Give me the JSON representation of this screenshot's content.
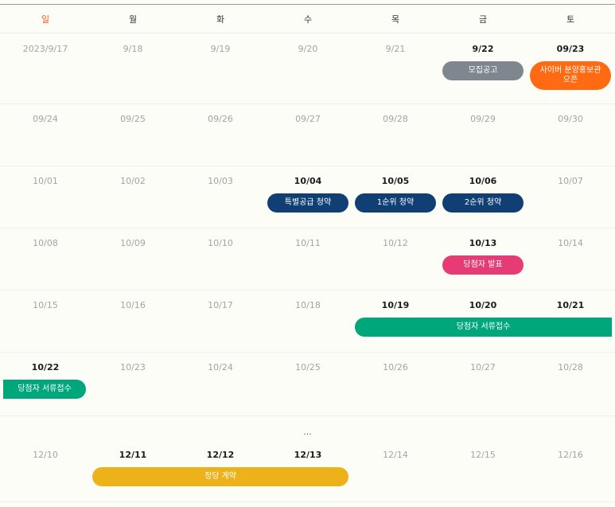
{
  "weekdays": [
    "일",
    "월",
    "화",
    "수",
    "목",
    "금",
    "토"
  ],
  "colors": {
    "sunday": "#f25a1d",
    "gray": "#7f868e",
    "orange": "#ff6a13",
    "navy": "#0f3f73",
    "pink": "#e63b74",
    "green": "#00a77b",
    "yellow": "#edb219"
  },
  "weeks": [
    {
      "days": [
        {
          "label": "2023/9/17",
          "active": false
        },
        {
          "label": "9/18",
          "active": false
        },
        {
          "label": "9/19",
          "active": false
        },
        {
          "label": "9/20",
          "active": false
        },
        {
          "label": "9/21",
          "active": false
        },
        {
          "label": "9/22",
          "active": true
        },
        {
          "label": "09/23",
          "active": true
        }
      ],
      "events": [
        {
          "label": "모집공고",
          "start_col": 5,
          "span": 1,
          "color": "gray"
        },
        {
          "label": "사이버 분양홍보관\n오픈",
          "start_col": 6,
          "span": 1,
          "color": "orange"
        }
      ]
    },
    {
      "days": [
        {
          "label": "09/24",
          "active": false
        },
        {
          "label": "09/25",
          "active": false
        },
        {
          "label": "09/26",
          "active": false
        },
        {
          "label": "09/27",
          "active": false
        },
        {
          "label": "09/28",
          "active": false
        },
        {
          "label": "09/29",
          "active": false
        },
        {
          "label": "09/30",
          "active": false
        }
      ],
      "events": []
    },
    {
      "days": [
        {
          "label": "10/01",
          "active": false
        },
        {
          "label": "10/02",
          "active": false
        },
        {
          "label": "10/03",
          "active": false
        },
        {
          "label": "10/04",
          "active": true
        },
        {
          "label": "10/05",
          "active": true
        },
        {
          "label": "10/06",
          "active": true
        },
        {
          "label": "10/07",
          "active": false
        }
      ],
      "events": [
        {
          "label": "특별공급 청약",
          "start_col": 3,
          "span": 1,
          "color": "navy"
        },
        {
          "label": "1순위 청약",
          "start_col": 4,
          "span": 1,
          "color": "navy"
        },
        {
          "label": "2순위 청약",
          "start_col": 5,
          "span": 1,
          "color": "navy"
        }
      ]
    },
    {
      "days": [
        {
          "label": "10/08",
          "active": false
        },
        {
          "label": "10/09",
          "active": false
        },
        {
          "label": "10/10",
          "active": false
        },
        {
          "label": "10/11",
          "active": false
        },
        {
          "label": "10/12",
          "active": false
        },
        {
          "label": "10/13",
          "active": true
        },
        {
          "label": "10/14",
          "active": false
        }
      ],
      "events": [
        {
          "label": "당첨자 발표",
          "start_col": 5,
          "span": 1,
          "color": "pink"
        }
      ]
    },
    {
      "days": [
        {
          "label": "10/15",
          "active": false
        },
        {
          "label": "10/16",
          "active": false
        },
        {
          "label": "10/17",
          "active": false
        },
        {
          "label": "10/18",
          "active": false
        },
        {
          "label": "10/19",
          "active": true
        },
        {
          "label": "10/20",
          "active": true
        },
        {
          "label": "10/21",
          "active": true
        }
      ],
      "events": [
        {
          "label": "당첨자 서류접수",
          "start_col": 4,
          "span": 3,
          "color": "green",
          "open_end": true
        }
      ]
    },
    {
      "days": [
        {
          "label": "10/22",
          "active": true
        },
        {
          "label": "10/23",
          "active": false
        },
        {
          "label": "10/24",
          "active": false
        },
        {
          "label": "10/25",
          "active": false
        },
        {
          "label": "10/26",
          "active": false
        },
        {
          "label": "10/27",
          "active": false
        },
        {
          "label": "10/28",
          "active": false
        }
      ],
      "events": [
        {
          "label": "당첨자 서류접수",
          "start_col": 0,
          "span": 1,
          "color": "green",
          "open_start": true
        }
      ]
    },
    {
      "days": [
        {
          "label": "12/10",
          "active": false
        },
        {
          "label": "12/11",
          "active": true
        },
        {
          "label": "12/12",
          "active": true
        },
        {
          "label": "12/13",
          "active": true
        },
        {
          "label": "12/14",
          "active": false
        },
        {
          "label": "12/15",
          "active": false
        },
        {
          "label": "12/16",
          "active": false
        }
      ],
      "events": [
        {
          "label": "정당 계약",
          "start_col": 1,
          "span": 3,
          "color": "yellow"
        }
      ]
    }
  ],
  "ellipsis": "..."
}
